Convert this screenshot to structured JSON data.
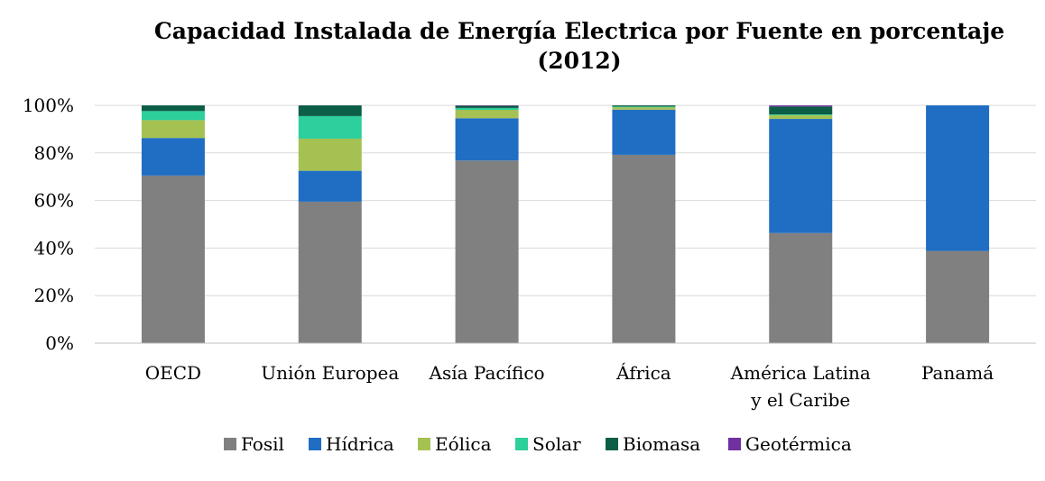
{
  "chart_data": {
    "type": "bar",
    "stacked": true,
    "title_lines": [
      "Capacidad Instalada de Energía Electrica por Fuente en porcentaje",
      "(2012)"
    ],
    "categories": [
      [
        "OECD"
      ],
      [
        "Unión Europea"
      ],
      [
        "Asía Pacífico"
      ],
      [
        "África"
      ],
      [
        "América Latina",
        "y el Caribe"
      ],
      [
        "Panamá"
      ]
    ],
    "yticks": [
      "0%",
      "20%",
      "40%",
      "60%",
      "80%",
      "100%"
    ],
    "ylim": [
      0,
      100
    ],
    "grid": true,
    "legend_position": "bottom",
    "series": [
      {
        "name": "Fosil",
        "color": "#808080",
        "values": [
          70.5,
          59.5,
          76.8,
          79.2,
          46.3,
          38.8
        ]
      },
      {
        "name": "Hídrica",
        "color": "#1f6ec4",
        "values": [
          15.8,
          13.0,
          17.8,
          19.0,
          48.0,
          61.2
        ]
      },
      {
        "name": "Eólica",
        "color": "#a5c152",
        "values": [
          7.5,
          13.5,
          3.5,
          1.0,
          1.6,
          0
        ]
      },
      {
        "name": "Solar",
        "color": "#2dcf9c",
        "values": [
          3.8,
          9.5,
          0.8,
          0.3,
          0.3,
          0
        ]
      },
      {
        "name": "Biomasa",
        "color": "#0d5e47",
        "values": [
          2.4,
          4.5,
          0.9,
          0.5,
          3.3,
          0
        ]
      },
      {
        "name": "Geotérmica",
        "color": "#7030a0",
        "values": [
          0,
          0,
          0.2,
          0,
          0.5,
          0
        ]
      }
    ]
  }
}
